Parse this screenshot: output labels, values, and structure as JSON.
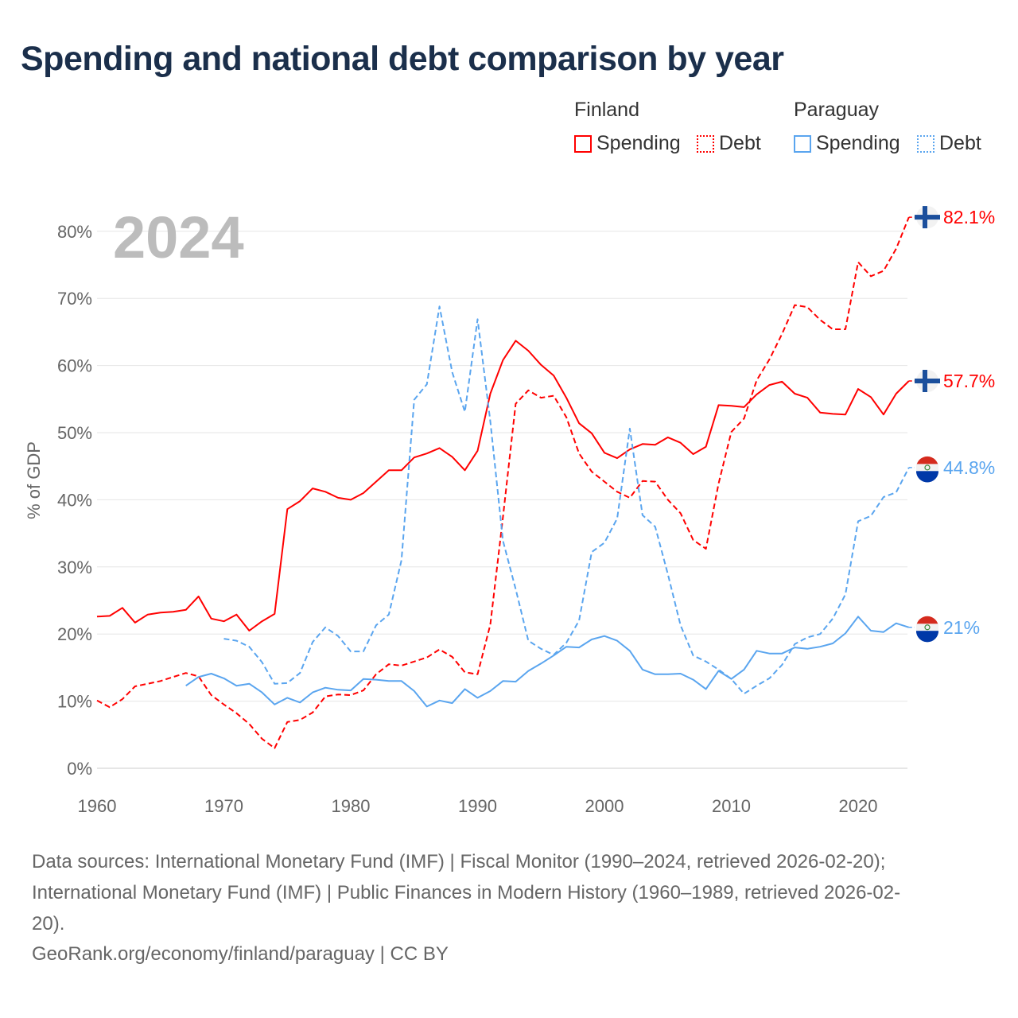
{
  "title": "Spending and national debt comparison by year",
  "legend": {
    "groups": [
      {
        "country": "Finland",
        "items": [
          {
            "label": "Spending",
            "style": "solid"
          },
          {
            "label": "Debt",
            "style": "dotted"
          }
        ],
        "color": "#ff0000"
      },
      {
        "country": "Paraguay",
        "items": [
          {
            "label": "Spending",
            "style": "solid"
          },
          {
            "label": "Debt",
            "style": "dotted"
          }
        ],
        "color": "#5aa5ef"
      }
    ]
  },
  "footer": {
    "line1": "Data sources: International Monetary Fund (IMF) | Fiscal Monitor (1990–2024, retrieved 2026-02-20);",
    "line2": "International Monetary Fund (IMF) | Public Finances in Modern History (1960–1989, retrieved 2026-02-",
    "line3": "20).",
    "line4": "GeoRank.org/economy/finland/paraguay | CC BY"
  },
  "chart_data": {
    "type": "line",
    "title": "Spending and national debt comparison by year",
    "year_label": "2024",
    "ylabel": "% of GDP",
    "xlabel": "",
    "xlim": [
      1960,
      2024
    ],
    "ylim": [
      0,
      85
    ],
    "xticks": [
      1960,
      1970,
      1980,
      1990,
      2000,
      2010,
      2020
    ],
    "yticks": [
      0,
      10,
      20,
      30,
      40,
      50,
      60,
      70,
      80
    ],
    "ytick_labels": [
      "0%",
      "10%",
      "20%",
      "30%",
      "40%",
      "50%",
      "60%",
      "70%",
      "80%"
    ],
    "grid": true,
    "legend_position": "top-right",
    "series": [
      {
        "name": "Finland Spending",
        "color": "#ff0000",
        "dash": false,
        "flag": "finland",
        "end_label": "57.7%",
        "start": 1960,
        "values": [
          22.6,
          22.7,
          23.9,
          21.7,
          22.9,
          23.2,
          23.3,
          23.6,
          25.6,
          22.3,
          21.9,
          22.9,
          20.5,
          21.9,
          23.0,
          38.6,
          39.8,
          41.7,
          41.2,
          40.3,
          40.0,
          41.0,
          42.7,
          44.4,
          44.4,
          46.3,
          46.9,
          47.7,
          46.4,
          44.4,
          47.3,
          55.8,
          60.8,
          63.7,
          62.2,
          60.1,
          58.5,
          55.2,
          51.4,
          49.9,
          47.0,
          46.2,
          47.5,
          48.3,
          48.2,
          49.3,
          48.5,
          46.8,
          47.9,
          54.1,
          54.0,
          53.8,
          55.7,
          57.1,
          57.6,
          55.8,
          55.2,
          53.0,
          52.8,
          52.7,
          56.5,
          55.3,
          52.7,
          55.8,
          57.7
        ]
      },
      {
        "name": "Finland Debt",
        "color": "#ff0000",
        "dash": true,
        "flag": "finland",
        "end_label": "82.1%",
        "start": 1960,
        "values": [
          10.1,
          9.1,
          10.3,
          12.2,
          12.6,
          13.0,
          13.6,
          14.2,
          13.7,
          10.9,
          9.5,
          8.2,
          6.6,
          4.4,
          3.0,
          6.9,
          7.2,
          8.3,
          10.7,
          11.0,
          10.9,
          11.6,
          14.0,
          15.5,
          15.3,
          15.9,
          16.5,
          17.7,
          16.6,
          14.3,
          14.0,
          21.4,
          37.4,
          54.3,
          56.3,
          55.2,
          55.5,
          52.3,
          46.9,
          44.2,
          42.7,
          41.2,
          40.3,
          42.8,
          42.7,
          40.0,
          38.0,
          34.0,
          32.7,
          42.4,
          50.1,
          52.1,
          57.8,
          60.9,
          64.7,
          69.0,
          68.7,
          66.8,
          65.4,
          65.4,
          75.4,
          73.3,
          74.1,
          77.4,
          82.1
        ]
      },
      {
        "name": "Paraguay Spending",
        "color": "#5aa5ef",
        "dash": false,
        "flag": "paraguay",
        "end_label": "21%",
        "start": 1967,
        "values": [
          12.3,
          13.6,
          14.1,
          13.4,
          12.3,
          12.6,
          11.3,
          9.5,
          10.5,
          9.8,
          11.3,
          12.0,
          11.7,
          11.6,
          13.3,
          13.2,
          13.0,
          13.0,
          11.5,
          9.2,
          10.1,
          9.7,
          11.8,
          10.5,
          11.5,
          13.0,
          12.9,
          14.5,
          15.6,
          16.8,
          18.1,
          18.0,
          19.2,
          19.7,
          19.0,
          17.5,
          14.7,
          14.0,
          14.0,
          14.1,
          13.2,
          11.8,
          14.5,
          13.3,
          14.7,
          17.5,
          17.1,
          17.1,
          18.0,
          17.8,
          18.1,
          18.6,
          20.1,
          22.6,
          20.5,
          20.3,
          21.6,
          21.0
        ]
      },
      {
        "name": "Paraguay Debt",
        "color": "#5aa5ef",
        "dash": true,
        "flag": "paraguay",
        "end_label": "44.8%",
        "start": 1970,
        "values": [
          19.3,
          19.0,
          18.1,
          15.8,
          12.6,
          12.7,
          14.2,
          18.8,
          21.0,
          19.7,
          17.4,
          17.4,
          21.3,
          22.9,
          31.0,
          54.9,
          57.2,
          68.8,
          59.0,
          53.1,
          66.9,
          51.7,
          33.9,
          26.7,
          19.0,
          17.8,
          16.9,
          18.7,
          22.0,
          32.2,
          33.6,
          37.2,
          50.6,
          37.7,
          36.0,
          28.9,
          21.3,
          16.8,
          15.9,
          14.7,
          13.3,
          11.1,
          12.3,
          13.4,
          15.4,
          18.5,
          19.5,
          20.0,
          22.3,
          25.9,
          36.8,
          37.6,
          40.4,
          41.1,
          44.8
        ]
      }
    ]
  }
}
